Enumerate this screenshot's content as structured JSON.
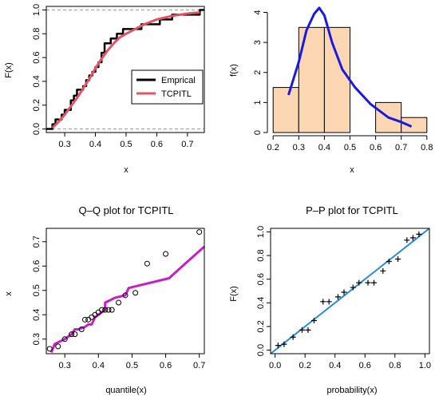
{
  "chart_data": [
    {
      "type": "line",
      "title": "",
      "xlabel": "x",
      "ylabel": "F(x)",
      "xlim": [
        0.24,
        0.755
      ],
      "ylim": [
        -0.03,
        1.03
      ],
      "xticks": [
        "0.3",
        "0.4",
        "0.5",
        "0.6",
        "0.7"
      ],
      "yticks": [
        "0.0",
        "0.2",
        "0.4",
        "0.6",
        "0.8",
        "1.0"
      ],
      "reference_lines_y": [
        0,
        1
      ],
      "legend": {
        "placement": "right",
        "entries": [
          "Emprical",
          "TCPITL"
        ]
      },
      "series": [
        {
          "name": "Emprical",
          "style": "step",
          "color": "#000000",
          "x": [
            0.24,
            0.26,
            0.27,
            0.29,
            0.3,
            0.32,
            0.33,
            0.34,
            0.36,
            0.37,
            0.38,
            0.39,
            0.4,
            0.41,
            0.42,
            0.43,
            0.45,
            0.47,
            0.49,
            0.51,
            0.55,
            0.61,
            0.65,
            0.74,
            0.755
          ],
          "y": [
            0.0,
            0.04,
            0.08,
            0.12,
            0.16,
            0.24,
            0.28,
            0.33,
            0.36,
            0.41,
            0.45,
            0.48,
            0.52,
            0.56,
            0.64,
            0.72,
            0.76,
            0.8,
            0.84,
            0.84,
            0.88,
            0.92,
            0.96,
            1.0,
            1.0
          ]
        },
        {
          "name": "TCPITL",
          "style": "line",
          "color": "#e15465",
          "x": [
            0.26,
            0.28,
            0.3,
            0.32,
            0.34,
            0.36,
            0.38,
            0.4,
            0.42,
            0.44,
            0.46,
            0.48,
            0.5,
            0.53,
            0.56,
            0.6,
            0.65,
            0.7,
            0.74
          ],
          "y": [
            0.01,
            0.06,
            0.12,
            0.19,
            0.26,
            0.34,
            0.42,
            0.51,
            0.59,
            0.66,
            0.72,
            0.77,
            0.8,
            0.84,
            0.88,
            0.92,
            0.95,
            0.97,
            0.98
          ]
        }
      ]
    },
    {
      "type": "bar",
      "title": "",
      "xlabel": "x",
      "ylabel": "f(x)",
      "xlim": [
        0.19,
        0.81
      ],
      "ylim": [
        0,
        4.2
      ],
      "xticks": [
        "0.2",
        "0.3",
        "0.4",
        "0.5",
        "0.6",
        "0.7",
        "0.8"
      ],
      "yticks": [
        "0",
        "1",
        "2",
        "3",
        "4"
      ],
      "bins": [
        {
          "from": 0.2,
          "to": 0.3,
          "density": 1.5
        },
        {
          "from": 0.3,
          "to": 0.4,
          "density": 3.5
        },
        {
          "from": 0.4,
          "to": 0.5,
          "density": 3.5
        },
        {
          "from": 0.5,
          "to": 0.6,
          "density": 0.0
        },
        {
          "from": 0.6,
          "to": 0.7,
          "density": 1.0
        },
        {
          "from": 0.7,
          "to": 0.8,
          "density": 0.5
        }
      ],
      "bar_color": "#fdd7b4",
      "series": [
        {
          "style": "line",
          "color": "#1a1adc",
          "x": [
            0.26,
            0.3,
            0.33,
            0.36,
            0.38,
            0.4,
            0.43,
            0.47,
            0.52,
            0.58,
            0.65,
            0.7,
            0.74
          ],
          "y": [
            1.25,
            2.35,
            3.4,
            3.95,
            4.15,
            3.9,
            3.0,
            2.1,
            1.5,
            0.95,
            0.5,
            0.35,
            0.2
          ]
        }
      ]
    },
    {
      "type": "scatter",
      "title": "Q–Q plot for  TCPITL",
      "xlabel": "quantile(x)",
      "ylabel": "x",
      "xlim": [
        0.245,
        0.715
      ],
      "ylim": [
        0.24,
        0.755
      ],
      "xticks": [
        "0.3",
        "0.4",
        "0.5",
        "0.6",
        "0.7"
      ],
      "yticks": [
        "0.3",
        "0.4",
        "0.5",
        "0.6",
        "0.7"
      ],
      "points": {
        "x": [
          0.255,
          0.28,
          0.3,
          0.32,
          0.33,
          0.35,
          0.36,
          0.37,
          0.38,
          0.39,
          0.4,
          0.41,
          0.42,
          0.43,
          0.44,
          0.46,
          0.48,
          0.51,
          0.545,
          0.6,
          0.7
        ],
        "y": [
          0.26,
          0.27,
          0.3,
          0.32,
          0.32,
          0.34,
          0.38,
          0.38,
          0.39,
          0.4,
          0.41,
          0.42,
          0.42,
          0.42,
          0.42,
          0.45,
          0.48,
          0.49,
          0.61,
          0.65,
          0.74
        ]
      },
      "series": [
        {
          "style": "line",
          "color": "#c71fc2",
          "x": [
            0.26,
            0.27,
            0.3,
            0.32,
            0.33,
            0.34,
            0.36,
            0.37,
            0.38,
            0.39,
            0.4,
            0.41,
            0.42,
            0.42,
            0.45,
            0.48,
            0.49,
            0.61,
            0.65,
            0.715
          ],
          "y": [
            0.245,
            0.28,
            0.3,
            0.32,
            0.34,
            0.34,
            0.35,
            0.36,
            0.36,
            0.39,
            0.4,
            0.41,
            0.42,
            0.45,
            0.47,
            0.48,
            0.51,
            0.55,
            0.6,
            0.68
          ]
        }
      ]
    },
    {
      "type": "scatter",
      "title": "P–P plot for  TCPITL",
      "xlabel": "probability(x)",
      "ylabel": "F(x)",
      "xlim": [
        -0.03,
        1.03
      ],
      "ylim": [
        -0.03,
        1.03
      ],
      "xticks": [
        "0.0",
        "0.2",
        "0.4",
        "0.6",
        "0.8",
        "1.0"
      ],
      "yticks": [
        "0.0",
        "0.2",
        "0.4",
        "0.6",
        "0.8",
        "1.0"
      ],
      "marker": "+",
      "points": {
        "x": [
          0.02,
          0.06,
          0.12,
          0.18,
          0.22,
          0.26,
          0.32,
          0.36,
          0.42,
          0.46,
          0.52,
          0.56,
          0.62,
          0.66,
          0.72,
          0.76,
          0.82,
          0.88,
          0.92,
          0.96
        ],
        "y": [
          0.04,
          0.05,
          0.11,
          0.17,
          0.17,
          0.25,
          0.41,
          0.41,
          0.45,
          0.49,
          0.53,
          0.57,
          0.57,
          0.57,
          0.67,
          0.75,
          0.77,
          0.93,
          0.95,
          0.98
        ]
      },
      "series": [
        {
          "style": "line",
          "color": "#2a8ad6",
          "x": [
            -0.03,
            1.03
          ],
          "y": [
            -0.03,
            1.03
          ]
        }
      ]
    }
  ]
}
